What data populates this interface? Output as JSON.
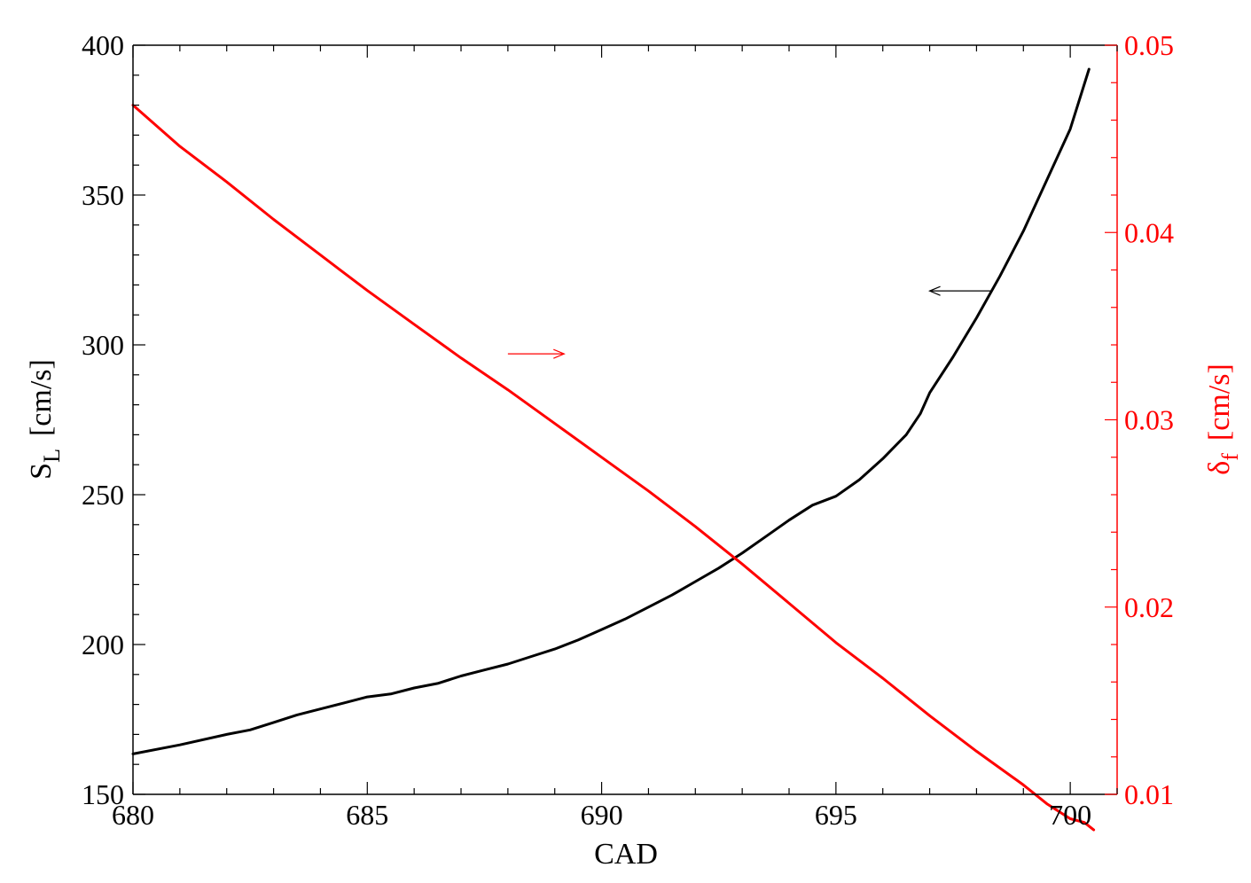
{
  "chart_data": {
    "type": "line",
    "xlabel": "CAD",
    "ylabel_left": {
      "main": "S",
      "sub": "L",
      "unit": "[cm/s]"
    },
    "ylabel_right": {
      "main": "δ",
      "sub": "f",
      "unit": "[cm/s]"
    },
    "xlim": [
      680,
      701
    ],
    "ylim_left": [
      150,
      400
    ],
    "ylim_right": [
      0.01,
      0.05
    ],
    "x_ticks": [
      680,
      685,
      690,
      695,
      700
    ],
    "y_left_ticks": [
      150,
      200,
      250,
      300,
      350,
      400
    ],
    "y_right_ticks": [
      "0.01",
      "0.02",
      "0.03",
      "0.04",
      "0.05"
    ],
    "grid": false,
    "legend": "none",
    "colors": {
      "sl": "#000000",
      "delta": "#ff0000"
    },
    "series": [
      {
        "axis": "left",
        "color": "#000000",
        "points": [
          [
            680.0,
            163.5
          ],
          [
            681.0,
            166.5
          ],
          [
            682.0,
            170.0
          ],
          [
            682.5,
            171.5
          ],
          [
            683.0,
            174.0
          ],
          [
            683.5,
            176.5
          ],
          [
            684.0,
            178.5
          ],
          [
            684.5,
            180.5
          ],
          [
            685.0,
            182.5
          ],
          [
            685.5,
            183.5
          ],
          [
            686.0,
            185.5
          ],
          [
            686.5,
            187.0
          ],
          [
            687.0,
            189.5
          ],
          [
            687.5,
            191.5
          ],
          [
            688.0,
            193.5
          ],
          [
            688.5,
            196.0
          ],
          [
            689.0,
            198.5
          ],
          [
            689.5,
            201.5
          ],
          [
            690.0,
            205.0
          ],
          [
            690.5,
            208.5
          ],
          [
            691.0,
            212.5
          ],
          [
            691.5,
            216.5
          ],
          [
            692.0,
            221.0
          ],
          [
            692.5,
            225.5
          ],
          [
            693.0,
            230.5
          ],
          [
            693.5,
            236.0
          ],
          [
            694.0,
            241.5
          ],
          [
            694.5,
            246.5
          ],
          [
            695.0,
            249.5
          ],
          [
            695.5,
            255.0
          ],
          [
            696.0,
            262.0
          ],
          [
            696.5,
            270.0
          ],
          [
            696.8,
            277.0
          ],
          [
            697.0,
            284.0
          ],
          [
            697.5,
            296.0
          ],
          [
            698.0,
            309.0
          ],
          [
            698.5,
            323.0
          ],
          [
            699.0,
            338.0
          ],
          [
            699.5,
            355.0
          ],
          [
            700.0,
            372.0
          ],
          [
            700.4,
            392.0
          ]
        ]
      },
      {
        "axis": "right",
        "color": "#ff0000",
        "points": [
          [
            680.0,
            0.0468
          ],
          [
            681.0,
            0.0446
          ],
          [
            682.0,
            0.0427
          ],
          [
            683.0,
            0.0407
          ],
          [
            684.0,
            0.0388
          ],
          [
            685.0,
            0.0369
          ],
          [
            686.0,
            0.0351
          ],
          [
            687.0,
            0.0333
          ],
          [
            688.0,
            0.0316
          ],
          [
            689.0,
            0.0298
          ],
          [
            690.0,
            0.028
          ],
          [
            691.0,
            0.0262
          ],
          [
            692.0,
            0.0243
          ],
          [
            693.0,
            0.0223
          ],
          [
            694.0,
            0.0202
          ],
          [
            695.0,
            0.0181
          ],
          [
            696.0,
            0.0162
          ],
          [
            697.0,
            0.0142
          ],
          [
            698.0,
            0.0123
          ],
          [
            699.0,
            0.0105
          ],
          [
            699.5,
            0.0095
          ],
          [
            700.0,
            0.0087
          ],
          [
            700.3,
            0.0085
          ],
          [
            700.5,
            0.0081
          ]
        ]
      }
    ],
    "annotations": [
      {
        "type": "arrow",
        "direction": "left",
        "color": "#000000",
        "x_from": 698.3,
        "x_to": 697.0,
        "y_axis": "left",
        "y": 318
      },
      {
        "type": "arrow",
        "direction": "right",
        "color": "#ff0000",
        "x_from": 688.0,
        "x_to": 689.2,
        "y_axis": "left",
        "y": 297
      }
    ]
  }
}
